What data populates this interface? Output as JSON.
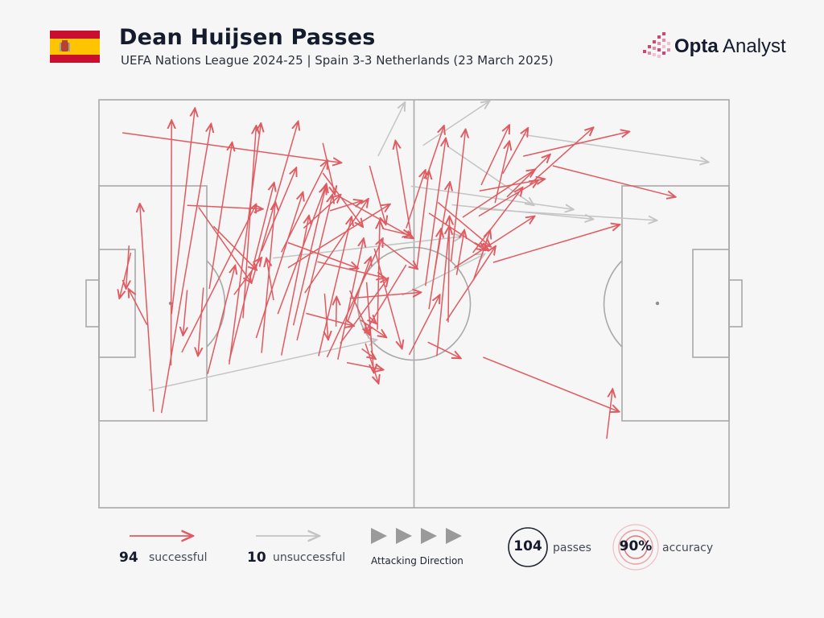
{
  "header": {
    "title": "Dean Huijsen Passes",
    "subtitle": "UEFA Nations League 2024-25 | Spain 3-3 Netherlands (23 March 2025)",
    "flag_icon": "spain-flag-icon",
    "brand_bold": "Opta",
    "brand_light": " Analyst"
  },
  "colors": {
    "successful": "#e05a60",
    "unsuccessful": "#c4c4c4",
    "pitch_lines": "#a9a9a9",
    "text": "#141b2d",
    "brand_pink": "#d8426f"
  },
  "legend": {
    "successful_count": "94",
    "successful_label": "successful",
    "unsuccessful_count": "10",
    "unsuccessful_label": "unsuccessful",
    "direction_label": "Attacking Direction",
    "passes_count": "104",
    "passes_label": "passes",
    "accuracy_value": "90%",
    "accuracy_label": "accuracy"
  },
  "chart_data": {
    "type": "pass-map",
    "pitch": {
      "length": 105,
      "width": 68,
      "attacking_direction": "left-to-right"
    },
    "coordinate_note": "x in metres from own goal line (0-105), y in metres from top touchline (0-68)",
    "successful": [
      [
        3.9,
        5.5,
        40.4,
        10.5
      ],
      [
        10.4,
        52.2,
        18.7,
        4.0
      ],
      [
        12.0,
        44.3,
        12.1,
        3.4
      ],
      [
        12.1,
        35.7,
        16.0,
        1.4
      ],
      [
        9.1,
        52.0,
        6.8,
        17.3
      ],
      [
        8.0,
        37.5,
        4.9,
        31.5
      ],
      [
        5.3,
        25.5,
        3.4,
        33.1
      ],
      [
        5.0,
        24.3,
        4.5,
        31.5
      ],
      [
        14.7,
        31.7,
        14.0,
        39.3
      ],
      [
        13.8,
        42.1,
        26.2,
        17.4
      ],
      [
        21.7,
        43.6,
        29.2,
        13.8
      ],
      [
        17.4,
        31.3,
        16.5,
        42.7
      ],
      [
        18.1,
        45.7,
        22.7,
        27.6
      ],
      [
        21.7,
        44.1,
        27.0,
        3.9
      ],
      [
        24.0,
        36.4,
        26.2,
        4.3
      ],
      [
        26.2,
        39.7,
        34.0,
        15.4
      ],
      [
        25.4,
        30.7,
        33.2,
        3.6
      ],
      [
        27.1,
        25.2,
        32.9,
        11.3
      ],
      [
        30.4,
        42.6,
        35.0,
        19.3
      ],
      [
        30.4,
        25.4,
        38.1,
        10.1
      ],
      [
        27.1,
        42.2,
        29.4,
        17.0
      ],
      [
        32.4,
        37.6,
        37.9,
        14.0
      ],
      [
        33.0,
        40.1,
        38.9,
        15.8
      ],
      [
        38.0,
        42.9,
        47.3,
        23.1
      ],
      [
        34.3,
        32.2,
        44.9,
        16.5
      ],
      [
        31.5,
        28.0,
        48.5,
        17.4
      ],
      [
        36.6,
        42.7,
        42.1,
        19.5
      ],
      [
        34.1,
        21.4,
        40.3,
        15.8
      ],
      [
        29.1,
        33.4,
        27.9,
        26.4
      ],
      [
        37.3,
        7.2,
        39.3,
        15.8
      ],
      [
        37.6,
        32.3,
        38.2,
        40.0
      ],
      [
        39.5,
        37.8,
        39.6,
        32.8
      ],
      [
        39.8,
        43.3,
        44.1,
        23.1
      ],
      [
        41.4,
        37.1,
        45.3,
        26.2
      ],
      [
        41.8,
        31.8,
        45.1,
        39.2
      ],
      [
        43.8,
        41.5,
        46.1,
        43.2
      ],
      [
        46.4,
        38.3,
        46.8,
        20.1
      ],
      [
        44.6,
        30.4,
        45.8,
        45.5
      ],
      [
        45.9,
        24.8,
        50.5,
        41.5
      ],
      [
        43.6,
        36.7,
        47.9,
        39.6
      ],
      [
        45.1,
        36.2,
        46.2,
        37.3
      ],
      [
        47.4,
        21.5,
        52.0,
        22.6
      ],
      [
        41.8,
        33.1,
        53.7,
        32.1
      ],
      [
        52.1,
        23.2,
        49.4,
        6.8
      ],
      [
        51.2,
        21.4,
        54.4,
        11.7
      ],
      [
        54.7,
        12.6,
        57.5,
        4.3
      ],
      [
        53.0,
        27.9,
        55.0,
        11.8
      ],
      [
        54.4,
        31.0,
        57.8,
        6.4
      ],
      [
        55.8,
        29.5,
        58.5,
        13.7
      ],
      [
        58.7,
        26.9,
        61.1,
        4.9
      ],
      [
        55.0,
        34.9,
        57.0,
        21.5
      ],
      [
        56.3,
        42.7,
        58.4,
        21.0
      ],
      [
        58.2,
        37.1,
        58.4,
        19.4
      ],
      [
        59.6,
        29.2,
        60.9,
        21.7
      ],
      [
        62.3,
        25.5,
        70.6,
        14.6
      ],
      [
        60.6,
        19.6,
        72.7,
        11.6
      ],
      [
        59.2,
        28.0,
        72.6,
        19.4
      ],
      [
        62.4,
        30.1,
        65.2,
        21.7
      ],
      [
        63.7,
        14.2,
        68.4,
        4.2
      ],
      [
        71.8,
        14.1,
        82.4,
        4.6
      ],
      [
        63.4,
        15.2,
        74.3,
        13.2
      ],
      [
        63.3,
        19.4,
        73.2,
        13.4
      ],
      [
        66.0,
        17.2,
        68.4,
        6.9
      ],
      [
        70.7,
        9.4,
        88.4,
        5.3
      ],
      [
        68.0,
        16.2,
        75.2,
        9.1
      ],
      [
        75.6,
        11.0,
        96.1,
        16.2
      ],
      [
        65.7,
        27.1,
        86.8,
        20.8
      ],
      [
        84.6,
        56.5,
        85.6,
        48.2
      ],
      [
        64.0,
        42.9,
        86.7,
        52.0
      ],
      [
        67.3,
        12.3,
        71.5,
        4.7
      ],
      [
        62.6,
        23.8,
        65.0,
        25.1
      ],
      [
        56.5,
        17.1,
        65.3,
        24.5
      ],
      [
        51.7,
        42.5,
        56.8,
        32.5
      ],
      [
        41.3,
        43.8,
        47.4,
        45.0
      ],
      [
        51.2,
        27.5,
        44.3,
        38.8
      ],
      [
        55.0,
        18.9,
        64.4,
        25.1
      ],
      [
        38.5,
        18.5,
        43.9,
        16.8
      ],
      [
        29.8,
        35.7,
        37.8,
        14.3
      ],
      [
        22.5,
        32.5,
        27.1,
        26.3
      ],
      [
        14.7,
        17.6,
        27.3,
        18.2
      ],
      [
        18.4,
        31.5,
        22.2,
        7.1
      ],
      [
        16.6,
        17.9,
        25.4,
        30.5
      ],
      [
        44.4,
        40.6,
        46.6,
        47.3
      ],
      [
        40.2,
        40.6,
        48.2,
        29.7
      ],
      [
        36.4,
        27.0,
        47.7,
        29.7
      ],
      [
        40.0,
        16.1,
        52.4,
        23.1
      ],
      [
        47.2,
        23.7,
        53.1,
        28.2
      ],
      [
        57.9,
        36.8,
        66.1,
        24.4
      ],
      [
        54.8,
        40.4,
        60.3,
        43.1
      ],
      [
        31.5,
        23.8,
        43.2,
        28.1
      ],
      [
        37.3,
        12.2,
        44.0,
        21.2
      ],
      [
        45.1,
        11.0,
        47.8,
        20.8
      ],
      [
        19.1,
        21.1,
        26.3,
        28.4
      ],
      [
        34.5,
        35.6,
        42.5,
        37.7
      ]
    ],
    "unsuccessful": [
      [
        8.3,
        48.4,
        46.3,
        40.0
      ],
      [
        46.5,
        9.4,
        51.0,
        0.4
      ],
      [
        54.0,
        7.6,
        65.1,
        0.2
      ],
      [
        58.3,
        7.9,
        72.5,
        17.6
      ],
      [
        70.6,
        5.8,
        101.6,
        10.4
      ],
      [
        58.8,
        17.5,
        82.4,
        19.9
      ],
      [
        63.4,
        18.2,
        93.0,
        20.1
      ],
      [
        50.5,
        32.6,
        64.3,
        25.7
      ],
      [
        52.0,
        14.4,
        79.1,
        18.3
      ],
      [
        29.0,
        26.4,
        60.5,
        22.8
      ]
    ]
  }
}
